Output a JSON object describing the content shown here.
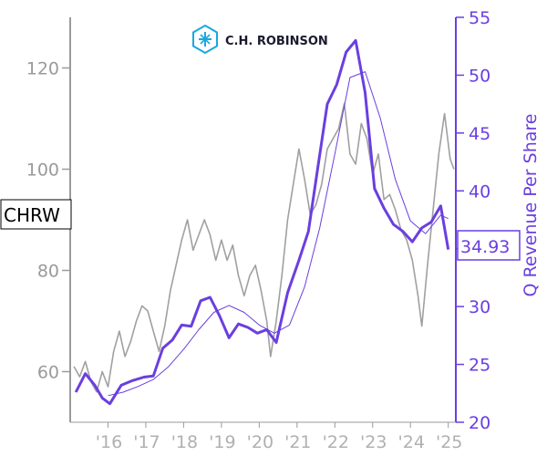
{
  "logo": {
    "text": "C.H. ROBINSON",
    "icon": "cube-logo-icon",
    "color": "#1aa8e0"
  },
  "ticker": "CHRW",
  "last_value_label": "34.93",
  "colors": {
    "price": "#a0a0a0",
    "revenue": "#6a3fe0",
    "axis_left": "#9a9a9a",
    "axis_right": "#6a3fe0"
  },
  "chart_data": {
    "type": "line",
    "title": "",
    "xlabel": "",
    "ylabel_left": "",
    "ylabel_right": "Q Revenue Per Share",
    "x_tick_labels": [
      "'16",
      "'17",
      "'18",
      "'19",
      "'20",
      "'21",
      "'22",
      "'23",
      "'24",
      "'25"
    ],
    "x_tick_years": [
      2016,
      2017,
      2018,
      2019,
      2020,
      2021,
      2022,
      2023,
      2024,
      2025
    ],
    "xlim": [
      2015.0,
      2025.2
    ],
    "left_axis": {
      "ylim": [
        50,
        130
      ],
      "ticks": [
        60,
        80,
        100,
        120
      ]
    },
    "right_axis": {
      "ylim": [
        20,
        55
      ],
      "ticks": [
        20,
        25,
        30,
        35,
        40,
        45,
        50,
        55
      ]
    },
    "grid": false,
    "series": [
      {
        "axis": "left",
        "style": "thin-gray",
        "x": [
          2015.1,
          2015.25,
          2015.4,
          2015.55,
          2015.7,
          2015.85,
          2016.0,
          2016.15,
          2016.3,
          2016.45,
          2016.6,
          2016.75,
          2016.9,
          2017.05,
          2017.2,
          2017.35,
          2017.5,
          2017.65,
          2017.8,
          2017.95,
          2018.1,
          2018.25,
          2018.4,
          2018.55,
          2018.7,
          2018.85,
          2019.0,
          2019.15,
          2019.3,
          2019.45,
          2019.6,
          2019.75,
          2019.9,
          2020.05,
          2020.2,
          2020.3,
          2020.45,
          2020.6,
          2020.75,
          2020.9,
          2021.05,
          2021.2,
          2021.35,
          2021.5,
          2021.65,
          2021.8,
          2021.95,
          2022.1,
          2022.25,
          2022.4,
          2022.55,
          2022.7,
          2022.85,
          2023.0,
          2023.15,
          2023.3,
          2023.45,
          2023.6,
          2023.75,
          2023.9,
          2024.05,
          2024.2,
          2024.3,
          2024.45,
          2024.6,
          2024.75,
          2024.9,
          2025.05,
          2025.15
        ],
        "y": [
          61,
          59,
          62,
          58,
          56,
          60,
          57,
          64,
          68,
          63,
          66,
          70,
          73,
          72,
          68,
          64,
          69,
          76,
          81,
          86,
          90,
          84,
          87,
          90,
          87,
          82,
          86,
          82,
          85,
          79,
          75,
          79,
          81,
          76,
          70,
          63,
          70,
          79,
          90,
          97,
          104,
          98,
          91,
          93,
          97,
          104,
          106,
          108,
          113,
          103,
          101,
          109,
          106,
          99,
          103,
          94,
          95,
          92,
          88,
          86,
          82,
          75,
          69,
          81,
          92,
          103,
          111,
          102,
          100
        ]
      },
      {
        "axis": "right",
        "style": "thick-purple",
        "name": "Q Revenue Per Share",
        "x": [
          2015.15,
          2015.4,
          2015.65,
          2015.85,
          2016.05,
          2016.35,
          2016.65,
          2016.95,
          2017.2,
          2017.45,
          2017.7,
          2017.95,
          2018.2,
          2018.45,
          2018.7,
          2018.95,
          2019.2,
          2019.45,
          2019.7,
          2019.95,
          2020.2,
          2020.45,
          2020.75,
          2021.05,
          2021.3,
          2021.55,
          2021.8,
          2022.05,
          2022.3,
          2022.55,
          2022.8,
          2023.05,
          2023.3,
          2023.55,
          2023.8,
          2024.05,
          2024.3,
          2024.55,
          2024.8,
          2025.0
        ],
        "y": [
          22.6,
          24.2,
          23.2,
          22.1,
          21.6,
          23.2,
          23.6,
          23.9,
          24.0,
          26.4,
          27.1,
          28.4,
          28.3,
          30.5,
          30.8,
          29.2,
          27.3,
          28.5,
          28.2,
          27.7,
          28.0,
          26.9,
          31.2,
          34.0,
          36.5,
          42.0,
          47.5,
          49.2,
          52.0,
          53.0,
          48.5,
          40.2,
          38.5,
          37.1,
          36.5,
          35.6,
          36.8,
          37.3,
          38.7,
          34.93
        ]
      },
      {
        "axis": "right",
        "style": "thin-purple",
        "x": [
          2016.0,
          2016.4,
          2016.8,
          2017.2,
          2017.6,
          2018.0,
          2018.4,
          2018.8,
          2019.2,
          2019.6,
          2020.0,
          2020.4,
          2020.8,
          2021.2,
          2021.6,
          2022.0,
          2022.4,
          2022.8,
          2023.2,
          2023.6,
          2024.0,
          2024.4,
          2024.8,
          2025.0
        ],
        "y": [
          22.3,
          22.6,
          23.1,
          23.7,
          24.8,
          26.3,
          28.0,
          29.5,
          30.1,
          29.5,
          28.4,
          27.7,
          28.4,
          31.7,
          36.8,
          43.2,
          49.8,
          50.3,
          46.3,
          41.0,
          37.4,
          36.3,
          37.9,
          37.6
        ]
      }
    ]
  }
}
